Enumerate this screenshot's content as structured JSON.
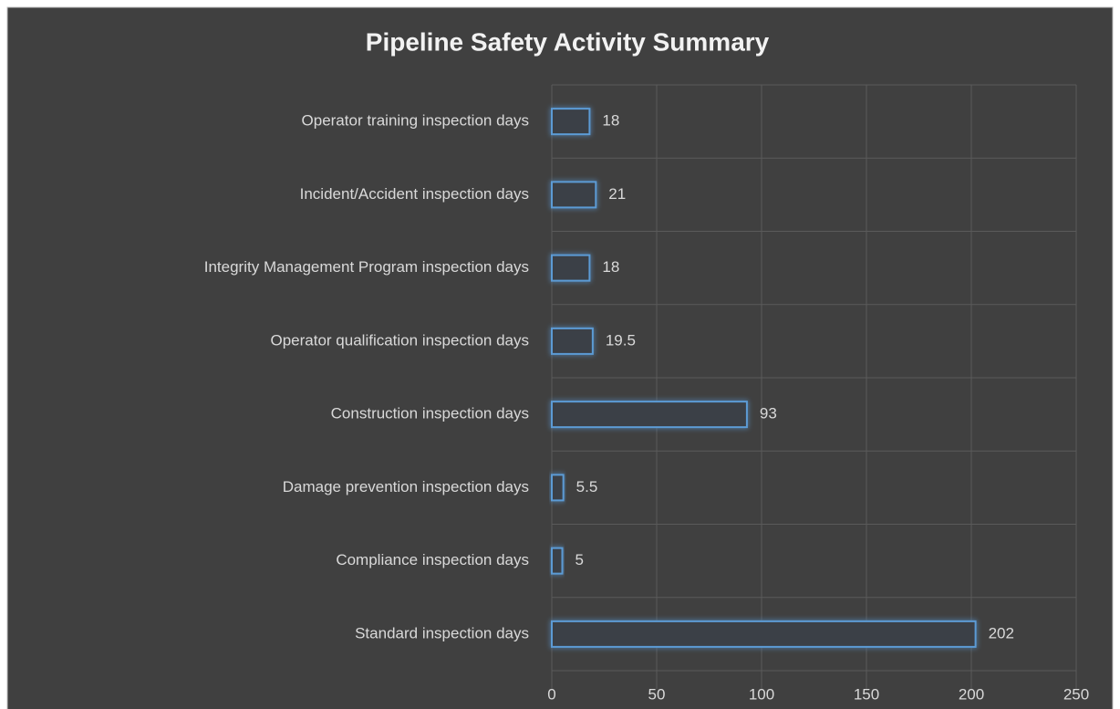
{
  "chart_data": {
    "type": "bar",
    "orientation": "horizontal",
    "title": "Pipeline Safety Activity Summary",
    "categories": [
      "Operator training inspection days",
      "Incident/Accident inspection days",
      "Integrity Management Program inspection days",
      "Operator qualification inspection days",
      "Construction inspection days",
      "Damage prevention inspection days",
      "Compliance inspection days",
      "Standard inspection days"
    ],
    "values": [
      18,
      21,
      18,
      19.5,
      93,
      5.5,
      5,
      202
    ],
    "color": "#5b9bd5",
    "xlim": [
      0,
      250
    ],
    "xticks": [
      0,
      50,
      100,
      150,
      200,
      250
    ],
    "grid": true,
    "data_labels": true
  }
}
